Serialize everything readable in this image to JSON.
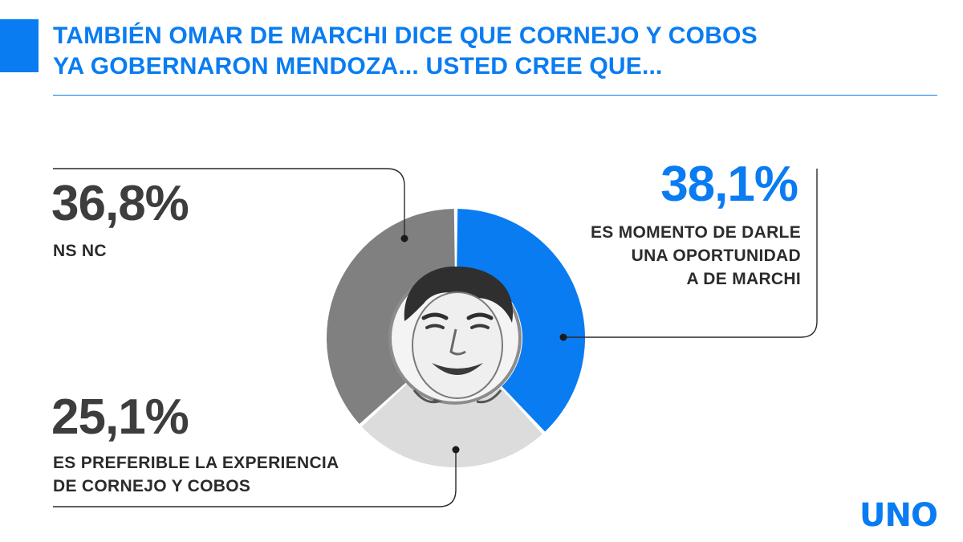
{
  "header": {
    "title_line1": "TAMBIÉN OMAR DE MARCHI DICE QUE CORNEJO Y COBOS",
    "title_line2": "YA GOBERNARON MENDOZA... USTED CREE QUE..."
  },
  "brand": {
    "logo_text": "UNO"
  },
  "colors": {
    "accent": "#0a7cf2",
    "ns_nc": "#808080",
    "experiencia": "#dcdcdc",
    "oportunidad": "#0a7cf2"
  },
  "chart_data": {
    "type": "pie",
    "donut": true,
    "center_image": "candidate-portrait",
    "slices": [
      {
        "value": 38.1,
        "value_label": "38,1%",
        "label_lines": [
          "ES MOMENTO DE DARLE",
          "UNA OPORTUNIDAD",
          "A DE MARCHI"
        ],
        "color": "#0a7cf2"
      },
      {
        "value": 25.1,
        "value_label": "25,1%",
        "label_lines": [
          "ES PREFERIBLE LA EXPERIENCIA",
          "DE CORNEJO Y COBOS"
        ],
        "color": "#dcdcdc"
      },
      {
        "value": 36.8,
        "value_label": "36,8%",
        "label_lines": [
          "NS NC"
        ],
        "color": "#808080"
      }
    ]
  }
}
